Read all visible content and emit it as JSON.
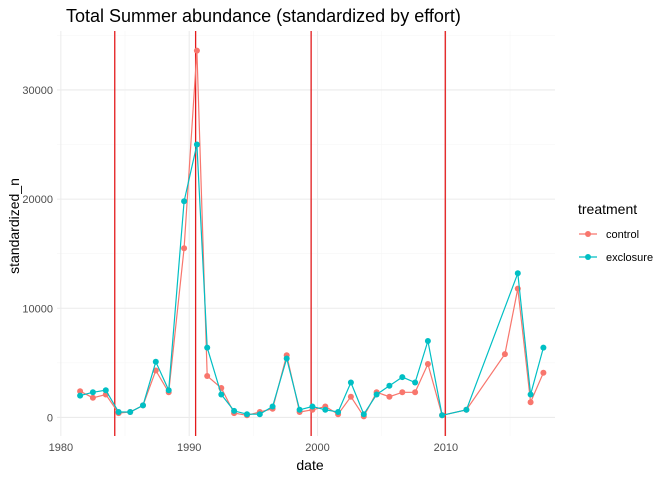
{
  "chart_data": {
    "type": "line",
    "title": "Total Summer abundance (standardized by effort)",
    "xlabel": "date",
    "ylabel": "standardized_n",
    "xlim": [
      1979.7,
      2018.5
    ],
    "ylim": [
      -1700,
      35400
    ],
    "x_ticks": [
      1980,
      1990,
      2000,
      2010
    ],
    "x_tick_labels": [
      "1980",
      "1990",
      "2000",
      "2010"
    ],
    "y_ticks": [
      0,
      10000,
      20000,
      30000
    ],
    "y_tick_labels": [
      "0",
      "10000",
      "20000",
      "30000"
    ],
    "grid": true,
    "vlines": [
      1984.2,
      1990.5,
      1999.5,
      2009.95
    ],
    "vline_color": "#e31a1c",
    "legend": {
      "title": "treatment",
      "position": "right"
    },
    "series": [
      {
        "name": "control",
        "color": "#F8766D",
        "points": [
          [
            1981.5,
            2400
          ],
          [
            1982.5,
            1800
          ],
          [
            1983.5,
            2100
          ],
          [
            1984.5,
            400
          ],
          [
            1985.4,
            500
          ],
          [
            1986.4,
            1100
          ],
          [
            1987.4,
            4300
          ],
          [
            1988.4,
            2300
          ],
          [
            1989.6,
            15500
          ],
          [
            1990.6,
            33600
          ],
          [
            1991.4,
            3800
          ],
          [
            1992.5,
            2700
          ],
          [
            1993.5,
            400
          ],
          [
            1994.5,
            200
          ],
          [
            1995.5,
            500
          ],
          [
            1996.5,
            800
          ],
          [
            1997.6,
            5700
          ],
          [
            1998.6,
            500
          ],
          [
            1999.6,
            700
          ],
          [
            2000.6,
            1000
          ],
          [
            2001.6,
            300
          ],
          [
            2002.6,
            1900
          ],
          [
            2003.6,
            100
          ],
          [
            2004.6,
            2300
          ],
          [
            2005.6,
            1900
          ],
          [
            2006.6,
            2300
          ],
          [
            2007.6,
            2300
          ],
          [
            2008.6,
            4900
          ],
          [
            2009.7,
            200
          ],
          [
            2011.6,
            700
          ],
          [
            2014.6,
            5800
          ],
          [
            2015.6,
            11800
          ],
          [
            2016.6,
            1400
          ],
          [
            2017.6,
            4100
          ]
        ]
      },
      {
        "name": "exclosure",
        "color": "#00BFC4",
        "points": [
          [
            1981.5,
            2000
          ],
          [
            1982.5,
            2300
          ],
          [
            1983.5,
            2500
          ],
          [
            1984.5,
            500
          ],
          [
            1985.4,
            500
          ],
          [
            1986.4,
            1100
          ],
          [
            1987.4,
            5100
          ],
          [
            1988.4,
            2500
          ],
          [
            1989.6,
            19800
          ],
          [
            1990.6,
            25000
          ],
          [
            1991.4,
            6400
          ],
          [
            1992.5,
            2100
          ],
          [
            1993.5,
            600
          ],
          [
            1994.5,
            300
          ],
          [
            1995.5,
            300
          ],
          [
            1996.5,
            1000
          ],
          [
            1997.6,
            5400
          ],
          [
            1998.6,
            700
          ],
          [
            1999.6,
            1000
          ],
          [
            2000.6,
            700
          ],
          [
            2001.6,
            500
          ],
          [
            2002.6,
            3200
          ],
          [
            2003.6,
            300
          ],
          [
            2004.6,
            2100
          ],
          [
            2005.6,
            2900
          ],
          [
            2006.6,
            3700
          ],
          [
            2007.6,
            3200
          ],
          [
            2008.6,
            7000
          ],
          [
            2009.7,
            200
          ],
          [
            2011.6,
            700
          ],
          [
            2015.6,
            13200
          ],
          [
            2016.6,
            2100
          ],
          [
            2017.6,
            6400
          ]
        ]
      }
    ]
  }
}
